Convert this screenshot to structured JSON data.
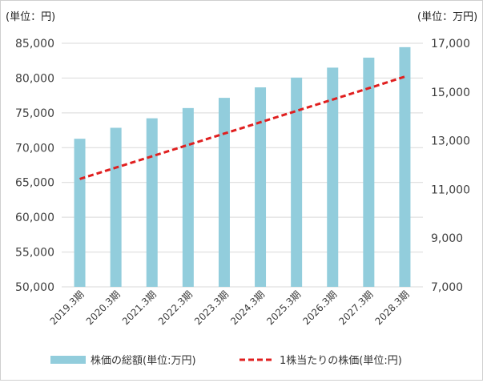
{
  "chart_data": {
    "type": "bar",
    "categories": [
      "2019.3期",
      "2020.3期",
      "2021.3期",
      "2022.3期",
      "2023.3期",
      "2024.3期",
      "2025.3期",
      "2026.3期",
      "2027.3期",
      "2028.3期"
    ],
    "series": [
      {
        "name": "株価の総額(単位:万円)",
        "type": "bar",
        "axis": "right",
        "color": "#92cddc",
        "values": [
          13080,
          13530,
          13920,
          14340,
          14760,
          15190,
          15590,
          16000,
          16410,
          16840
        ]
      },
      {
        "name": "1株当たりの株価(単位:円)",
        "type": "line",
        "axis": "left",
        "color": "#e01f1f",
        "dash": "dashed",
        "values": [
          65500,
          67130,
          68760,
          70390,
          72020,
          73650,
          75280,
          76910,
          78540,
          80200
        ]
      }
    ],
    "y_left": {
      "unit_label": "(単位：円)",
      "range": [
        50000,
        85000
      ],
      "ticks": [
        "50,000",
        "55,000",
        "60,000",
        "65,000",
        "70,000",
        "75,000",
        "80,000",
        "85,000"
      ],
      "tick_values": [
        50000,
        55000,
        60000,
        65000,
        70000,
        75000,
        80000,
        85000
      ]
    },
    "y_right": {
      "unit_label": "(単位：万円)",
      "range": [
        7000,
        17000
      ],
      "ticks": [
        "7,000",
        "9,000",
        "11,000",
        "13,000",
        "15,000",
        "17,000"
      ],
      "tick_values": [
        7000,
        9000,
        11000,
        13000,
        15000,
        17000
      ]
    },
    "grid": true,
    "legend_position": "bottom"
  }
}
